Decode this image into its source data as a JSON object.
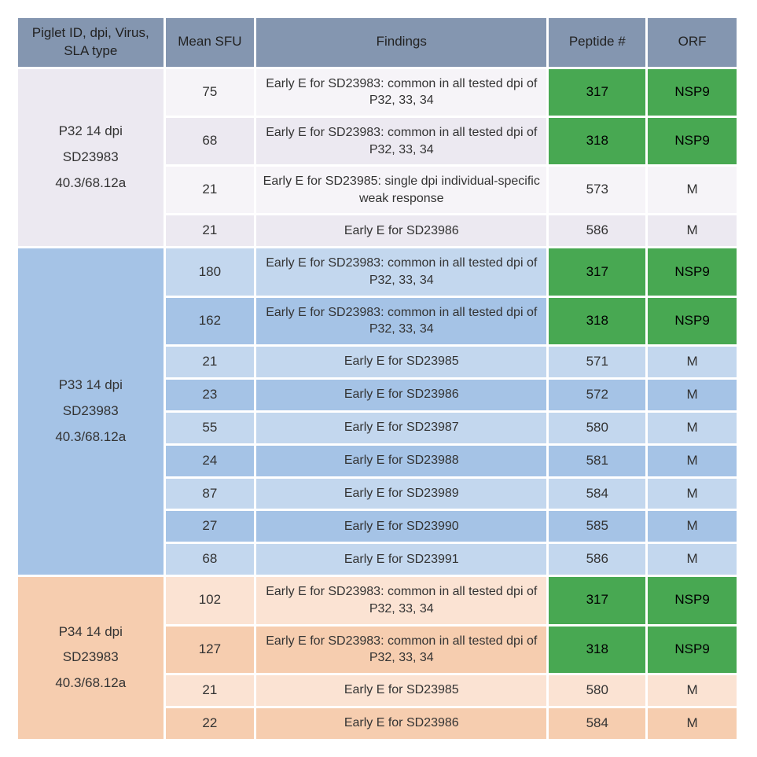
{
  "columns": [
    "Piglet ID, dpi, Virus, SLA type",
    "Mean SFU",
    "Findings",
    "Peptide #",
    "ORF"
  ],
  "colors": {
    "header_bg": "#8496b0",
    "highlight_green": "#48a852",
    "group_bg": [
      "#ece9f1",
      "#a5c3e6",
      "#f6cdaf"
    ],
    "group_alt_bg": [
      "#f6f4f8",
      "#c3d7ee",
      "#fbe3d3"
    ]
  },
  "groups": [
    {
      "id_lines": [
        "P32 14 dpi",
        "SD23983",
        "40.3/68.12a"
      ],
      "rows": [
        {
          "sfu": "75",
          "finding": "Early E for SD23983: common in all tested dpi of P32, 33, 34",
          "peptide": "317",
          "orf": "NSP9",
          "hl": true
        },
        {
          "sfu": "68",
          "finding": "Early E for SD23983: common in all tested dpi of P32, 33, 34",
          "peptide": "318",
          "orf": "NSP9",
          "hl": true
        },
        {
          "sfu": "21",
          "finding": "Early E for SD23985: single dpi individual-specific weak response",
          "peptide": "573",
          "orf": "M",
          "hl": false
        },
        {
          "sfu": "21",
          "finding": "Early E for SD23986",
          "peptide": "586",
          "orf": "M",
          "hl": false
        }
      ]
    },
    {
      "id_lines": [
        "P33 14 dpi",
        "SD23983",
        "40.3/68.12a"
      ],
      "rows": [
        {
          "sfu": "180",
          "finding": "Early E for SD23983: common in all tested dpi of P32, 33, 34",
          "peptide": "317",
          "orf": "NSP9",
          "hl": true
        },
        {
          "sfu": "162",
          "finding": "Early E for SD23983: common in all tested dpi of P32, 33, 34",
          "peptide": "318",
          "orf": "NSP9",
          "hl": true
        },
        {
          "sfu": "21",
          "finding": "Early E for SD23985",
          "peptide": "571",
          "orf": "M",
          "hl": false
        },
        {
          "sfu": "23",
          "finding": "Early E for SD23986",
          "peptide": "572",
          "orf": "M",
          "hl": false
        },
        {
          "sfu": "55",
          "finding": "Early E for SD23987",
          "peptide": "580",
          "orf": "M",
          "hl": false
        },
        {
          "sfu": "24",
          "finding": "Early E for SD23988",
          "peptide": "581",
          "orf": "M",
          "hl": false
        },
        {
          "sfu": "87",
          "finding": "Early E for SD23989",
          "peptide": "584",
          "orf": "M",
          "hl": false
        },
        {
          "sfu": "27",
          "finding": "Early E for SD23990",
          "peptide": "585",
          "orf": "M",
          "hl": false
        },
        {
          "sfu": "68",
          "finding": "Early E for SD23991",
          "peptide": "586",
          "orf": "M",
          "hl": false
        }
      ]
    },
    {
      "id_lines": [
        "P34 14 dpi",
        "SD23983",
        "40.3/68.12a"
      ],
      "rows": [
        {
          "sfu": "102",
          "finding": "Early E for SD23983: common in all tested dpi of P32, 33, 34",
          "peptide": "317",
          "orf": "NSP9",
          "hl": true
        },
        {
          "sfu": "127",
          "finding": "Early E for SD23983: common in all tested dpi of P32, 33, 34",
          "peptide": "318",
          "orf": "NSP9",
          "hl": true
        },
        {
          "sfu": "21",
          "finding": "Early E for SD23985",
          "peptide": "580",
          "orf": "M",
          "hl": false
        },
        {
          "sfu": "22",
          "finding": "Early E for SD23986",
          "peptide": "584",
          "orf": "M",
          "hl": false
        }
      ]
    }
  ]
}
